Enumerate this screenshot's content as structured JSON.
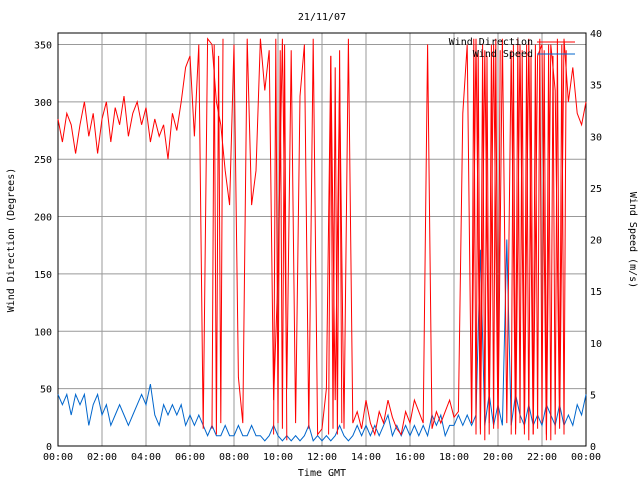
{
  "chart_data": {
    "type": "line",
    "title": "21/11/07",
    "xlabel": "Time GMT",
    "ylabel_left": "Wind Direction (Degrees)",
    "ylabel_right": "Wind Speed (m/s)",
    "x_ticks": [
      "00:00",
      "02:00",
      "04:00",
      "06:00",
      "08:00",
      "10:00",
      "12:00",
      "14:00",
      "16:00",
      "18:00",
      "20:00",
      "22:00",
      "00:00"
    ],
    "xlim_hours": [
      0,
      24
    ],
    "ylim_left": [
      0,
      360
    ],
    "yticks_left": [
      0,
      50,
      100,
      150,
      200,
      250,
      300,
      350
    ],
    "ylim_right": [
      0,
      40
    ],
    "yticks_right": [
      0,
      5,
      10,
      15,
      20,
      25,
      30,
      35,
      40
    ],
    "grid": true,
    "legend_position": "top-right",
    "colors": {
      "direction": "#ff0000",
      "speed": "#0066cc",
      "grid": "#999999"
    },
    "series": [
      {
        "name": "Wind Direction",
        "axis": "left",
        "x_hours": [
          0,
          0.2,
          0.4,
          0.6,
          0.8,
          1.0,
          1.2,
          1.4,
          1.6,
          1.8,
          2.0,
          2.2,
          2.4,
          2.6,
          2.8,
          3.0,
          3.2,
          3.4,
          3.6,
          3.8,
          4.0,
          4.2,
          4.4,
          4.6,
          4.8,
          5.0,
          5.2,
          5.4,
          5.6,
          5.8,
          6.0,
          6.2,
          6.4,
          6.6,
          6.8,
          7.0,
          7.2,
          7.4,
          7.6,
          7.8,
          8.0,
          8.2,
          8.4,
          8.6,
          8.8,
          9.0,
          9.2,
          9.4,
          9.6,
          9.8,
          10.0,
          10.2,
          10.4,
          10.6,
          10.8,
          11.0,
          11.2,
          11.4,
          11.6,
          11.8,
          12.0,
          12.2,
          12.4,
          12.6,
          12.8,
          13.0,
          13.2,
          13.4,
          13.6,
          13.8,
          14.0,
          14.2,
          14.4,
          14.6,
          14.8,
          15.0,
          15.2,
          15.4,
          15.6,
          15.8,
          16.0,
          16.2,
          16.4,
          16.6,
          16.8,
          17.0,
          17.2,
          17.4,
          17.6,
          17.8,
          18.0,
          18.2,
          18.4,
          18.6,
          18.8,
          19.0,
          19.2,
          19.4,
          19.6,
          19.8,
          20.0,
          20.2,
          20.4,
          20.6,
          20.8,
          21.0,
          21.2,
          21.4,
          21.6,
          21.8,
          22.0,
          22.2,
          22.4,
          22.6,
          22.8,
          23.0,
          23.2,
          23.4,
          23.6,
          23.8,
          24.0
        ],
        "values": [
          285,
          265,
          290,
          280,
          255,
          280,
          300,
          270,
          290,
          255,
          285,
          300,
          265,
          295,
          280,
          305,
          270,
          290,
          300,
          280,
          295,
          265,
          285,
          270,
          280,
          250,
          290,
          275,
          300,
          330,
          340,
          270,
          350,
          15,
          355,
          350,
          300,
          280,
          240,
          210,
          350,
          60,
          20,
          355,
          210,
          240,
          355,
          310,
          345,
          40,
          150,
          355,
          50,
          345,
          20,
          305,
          350,
          15,
          355,
          10,
          15,
          50,
          340,
          40,
          320,
          15,
          355,
          20,
          30,
          15,
          40,
          20,
          10,
          30,
          20,
          40,
          25,
          15,
          10,
          30,
          20,
          40,
          30,
          20,
          350,
          15,
          30,
          20,
          30,
          40,
          25,
          30,
          290,
          350,
          20,
          355,
          10,
          345,
          20,
          350,
          15,
          355,
          20,
          345,
          10,
          350,
          15,
          355,
          10,
          340,
          350,
          5,
          350,
          310,
          15,
          355,
          300,
          330,
          290,
          280,
          300
        ],
        "segments": [
          [
            [
              7.0,
              15
            ],
            [
              7.1,
              350
            ],
            [
              7.2,
              10
            ],
            [
              7.3,
              340
            ],
            [
              7.4,
              20
            ],
            [
              7.5,
              355
            ]
          ],
          [
            [
              9.8,
              10
            ],
            [
              9.9,
              355
            ],
            [
              10.0,
              20
            ],
            [
              10.1,
              345
            ],
            [
              10.2,
              15
            ],
            [
              10.3,
              350
            ],
            [
              10.4,
              5
            ]
          ],
          [
            [
              12.3,
              10
            ],
            [
              12.4,
              340
            ],
            [
              12.5,
              15
            ],
            [
              12.6,
              330
            ],
            [
              12.7,
              10
            ],
            [
              12.8,
              345
            ],
            [
              12.9,
              20
            ]
          ],
          [
            [
              18.8,
              20
            ],
            [
              18.9,
              355
            ],
            [
              19.0,
              10
            ],
            [
              19.1,
              345
            ],
            [
              19.2,
              15
            ],
            [
              19.3,
              350
            ],
            [
              19.4,
              5
            ],
            [
              19.5,
              340
            ],
            [
              19.6,
              10
            ],
            [
              19.7,
              350
            ],
            [
              19.8,
              15
            ],
            [
              19.9,
              355
            ],
            [
              20.0,
              20
            ],
            [
              20.1,
              345
            ]
          ],
          [
            [
              20.6,
              10
            ],
            [
              20.7,
              350
            ],
            [
              20.8,
              15
            ],
            [
              20.9,
              355
            ],
            [
              21.0,
              20
            ],
            [
              21.1,
              345
            ],
            [
              21.2,
              10
            ],
            [
              21.3,
              350
            ],
            [
              21.4,
              5
            ],
            [
              21.5,
              340
            ],
            [
              21.6,
              10
            ],
            [
              21.7,
              350
            ],
            [
              21.8,
              15
            ],
            [
              21.9,
              355
            ],
            [
              22.0,
              20
            ],
            [
              22.1,
              345
            ],
            [
              22.2,
              10
            ],
            [
              22.3,
              350
            ],
            [
              22.4,
              5
            ],
            [
              22.5,
              340
            ],
            [
              22.6,
              10
            ],
            [
              22.7,
              355
            ],
            [
              22.8,
              20
            ],
            [
              22.9,
              350
            ],
            [
              23.0,
              10
            ],
            [
              23.1,
              345
            ]
          ]
        ]
      },
      {
        "name": "Wind Speed",
        "axis": "right",
        "x_hours": [
          0,
          0.2,
          0.4,
          0.6,
          0.8,
          1.0,
          1.2,
          1.4,
          1.6,
          1.8,
          2.0,
          2.2,
          2.4,
          2.6,
          2.8,
          3.0,
          3.2,
          3.4,
          3.6,
          3.8,
          4.0,
          4.2,
          4.4,
          4.6,
          4.8,
          5.0,
          5.2,
          5.4,
          5.6,
          5.8,
          6.0,
          6.2,
          6.4,
          6.6,
          6.8,
          7.0,
          7.2,
          7.4,
          7.6,
          7.8,
          8.0,
          8.2,
          8.4,
          8.6,
          8.8,
          9.0,
          9.2,
          9.4,
          9.6,
          9.8,
          10.0,
          10.2,
          10.4,
          10.6,
          10.8,
          11.0,
          11.2,
          11.4,
          11.6,
          11.8,
          12.0,
          12.2,
          12.4,
          12.6,
          12.8,
          13.0,
          13.2,
          13.4,
          13.6,
          13.8,
          14.0,
          14.2,
          14.4,
          14.6,
          14.8,
          15.0,
          15.2,
          15.4,
          15.6,
          15.8,
          16.0,
          16.2,
          16.4,
          16.6,
          16.8,
          17.0,
          17.2,
          17.4,
          17.6,
          17.8,
          18.0,
          18.2,
          18.4,
          18.6,
          18.8,
          19.0,
          19.2,
          19.4,
          19.6,
          19.8,
          20.0,
          20.2,
          20.4,
          20.6,
          20.8,
          21.0,
          21.2,
          21.4,
          21.6,
          21.8,
          22.0,
          22.2,
          22.4,
          22.6,
          22.8,
          23.0,
          23.2,
          23.4,
          23.6,
          23.8,
          24.0
        ],
        "values": [
          5,
          4,
          5,
          3,
          5,
          4,
          5,
          2,
          4,
          5,
          3,
          4,
          2,
          3,
          4,
          3,
          2,
          3,
          4,
          5,
          4,
          6,
          3,
          2,
          4,
          3,
          4,
          3,
          4,
          2,
          3,
          2,
          3,
          2,
          1,
          2,
          1,
          1,
          2,
          1,
          1,
          2,
          1,
          1,
          2,
          1,
          1,
          0.5,
          1,
          2,
          1,
          0.5,
          1,
          0.5,
          1,
          0.5,
          1,
          2,
          0.5,
          1,
          0.5,
          1,
          0.5,
          1,
          2,
          1,
          0.5,
          1,
          2,
          1,
          2,
          1,
          2,
          1,
          2,
          3,
          1,
          2,
          1,
          2,
          1,
          2,
          1,
          2,
          1,
          3,
          2,
          3,
          1,
          2,
          2,
          3,
          2,
          3,
          2,
          3,
          19,
          2,
          5,
          2,
          4,
          2,
          20,
          2,
          5,
          3,
          2,
          4,
          2,
          3,
          2,
          4,
          3,
          2,
          4,
          2,
          3,
          2,
          4,
          3,
          5
        ]
      }
    ]
  }
}
